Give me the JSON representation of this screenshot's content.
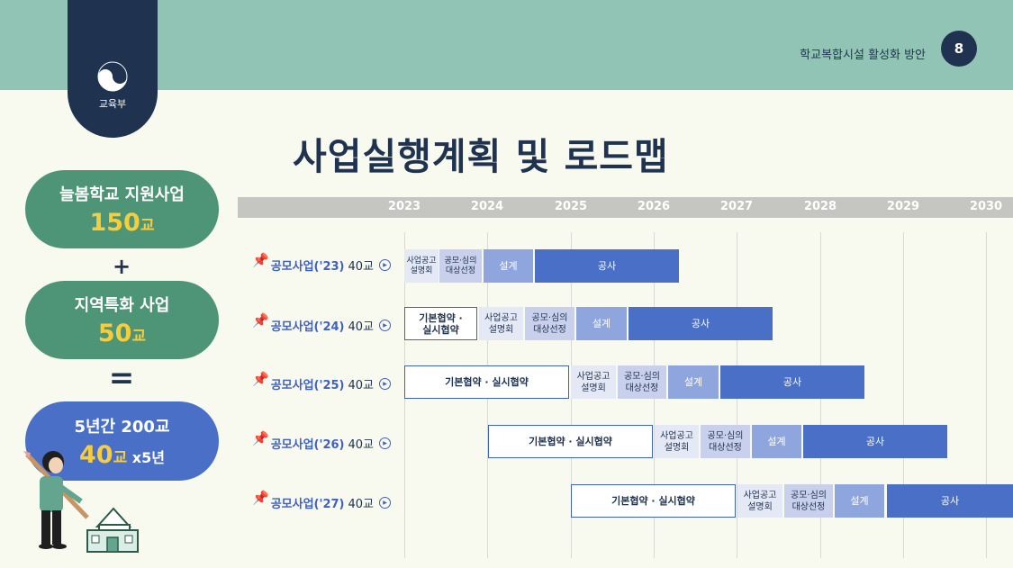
{
  "header": {
    "title": "학교복합시설 활성화 방안",
    "page_number": "8"
  },
  "ministry": {
    "label": "교육부"
  },
  "main": {
    "title": "사업실행계획 및 로드맵"
  },
  "summary": {
    "box1": {
      "label": "늘봄학교 지원사업",
      "value": "150",
      "unit": "교"
    },
    "plus": "+",
    "box2": {
      "label": "지역특화 사업",
      "value": "50",
      "unit": "교"
    },
    "equals": "=",
    "box3": {
      "label": "5년간 200교",
      "value": "40",
      "unit": "교",
      "suffix": " x5년"
    }
  },
  "roadmap": {
    "years": [
      "2023",
      "2024",
      "2025",
      "2026",
      "2027",
      "2028",
      "2029",
      "2030"
    ],
    "rows": [
      {
        "label": "공모사업('23)",
        "count": "40교"
      },
      {
        "label": "공모사업('24)",
        "count": "40교"
      },
      {
        "label": "공모사업('25)",
        "count": "40교"
      },
      {
        "label": "공모사업('26)",
        "count": "40교"
      },
      {
        "label": "공모사업('27)",
        "count": "40교"
      }
    ],
    "phases": {
      "agreement_short": "기본협약 ·\n실시협약",
      "agreement": "기본협약 · 실시협약",
      "briefing": "사업공고\n설명회",
      "selection": "공모·심의\n대상선정",
      "design": "설계",
      "construction": "공사"
    }
  }
}
